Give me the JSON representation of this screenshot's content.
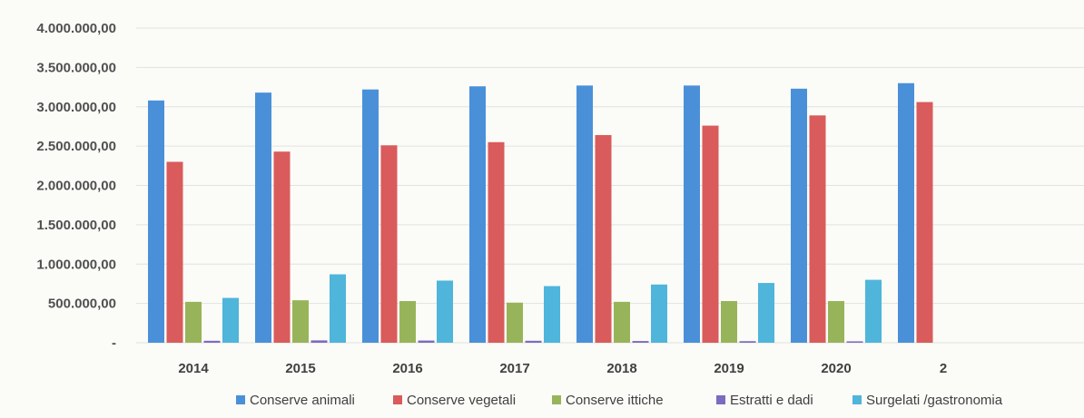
{
  "chart_data": {
    "type": "bar",
    "categories": [
      "2014",
      "2015",
      "2016",
      "2017",
      "2018",
      "2019",
      "2020",
      "2"
    ],
    "y_ticks": [
      {
        "value": 0,
        "label": "-"
      },
      {
        "value": 500000,
        "label": "500.000,00"
      },
      {
        "value": 1000000,
        "label": "1.000.000,00"
      },
      {
        "value": 1500000,
        "label": "1.500.000,00"
      },
      {
        "value": 2000000,
        "label": "2.000.000,00"
      },
      {
        "value": 2500000,
        "label": "2.500.000,00"
      },
      {
        "value": 3000000,
        "label": "3.000.000,00"
      },
      {
        "value": 3500000,
        "label": "3.500.000,00"
      },
      {
        "value": 4000000,
        "label": "4.000.000,00"
      }
    ],
    "ylim": [
      0,
      4000000
    ],
    "grid": true,
    "legend_position": "bottom",
    "series": [
      {
        "name": "Conserve animali",
        "color": "#4a90d9",
        "values": [
          3080000,
          3180000,
          3220000,
          3260000,
          3270000,
          3270000,
          3230000,
          3300000
        ]
      },
      {
        "name": "Conserve vegetali",
        "color": "#d95b5b",
        "values": [
          2300000,
          2430000,
          2510000,
          2550000,
          2640000,
          2760000,
          2890000,
          3060000
        ]
      },
      {
        "name": "Conserve ittiche",
        "color": "#98b45a",
        "values": [
          520000,
          540000,
          530000,
          510000,
          520000,
          530000,
          530000,
          null
        ]
      },
      {
        "name": "Estratti e dadi",
        "color": "#7d6bbf",
        "values": [
          25000,
          30000,
          28000,
          25000,
          22000,
          20000,
          18000,
          null
        ]
      },
      {
        "name": "Surgelati /gastronomia",
        "color": "#4fb5da",
        "values": [
          570000,
          870000,
          790000,
          720000,
          740000,
          760000,
          800000,
          null
        ]
      }
    ]
  }
}
